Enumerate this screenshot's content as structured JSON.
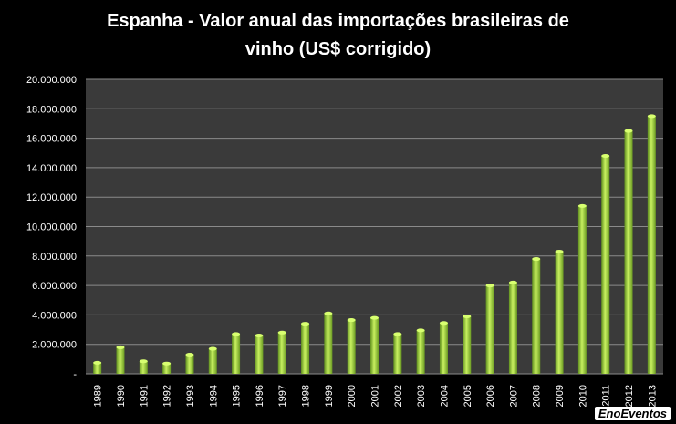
{
  "chart_data": {
    "type": "bar",
    "title_line1": "Espanha - Valor anual das importações  brasileiras de",
    "title_line2": "vinho (US$ corrigido)",
    "xlabel": "",
    "ylabel": "",
    "ylim": [
      0,
      20000000
    ],
    "grid": true,
    "y_ticks": [
      {
        "value": 0,
        "label": "-"
      },
      {
        "value": 2000000,
        "label": "2.000.000"
      },
      {
        "value": 4000000,
        "label": "4.000.000"
      },
      {
        "value": 6000000,
        "label": "6.000.000"
      },
      {
        "value": 8000000,
        "label": "8.000.000"
      },
      {
        "value": 10000000,
        "label": "10.000.000"
      },
      {
        "value": 12000000,
        "label": "12.000.000"
      },
      {
        "value": 14000000,
        "label": "14.000.000"
      },
      {
        "value": 16000000,
        "label": "16.000.000"
      },
      {
        "value": 18000000,
        "label": "18.000.000"
      },
      {
        "value": 20000000,
        "label": "20.000.000"
      }
    ],
    "categories": [
      "1989",
      "1990",
      "1991",
      "1992",
      "1993",
      "1994",
      "1995",
      "1996",
      "1997",
      "1998",
      "1999",
      "2000",
      "2001",
      "2002",
      "2003",
      "2004",
      "2005",
      "2006",
      "2007",
      "2008",
      "2009",
      "2010",
      "2011",
      "2012",
      "2013"
    ],
    "values": [
      750000,
      1800000,
      850000,
      700000,
      1300000,
      1700000,
      2700000,
      2600000,
      2800000,
      3400000,
      4100000,
      3650000,
      3800000,
      2700000,
      2950000,
      3450000,
      3900000,
      6000000,
      6200000,
      7800000,
      8300000,
      11400000,
      14800000,
      16500000,
      17500000
    ],
    "colors": {
      "bar": "#9acd32",
      "plot_bg": "#3a3a3a",
      "grid": "#8a8a8a",
      "text": "#ffffff"
    }
  },
  "watermark": "EnoEventos"
}
